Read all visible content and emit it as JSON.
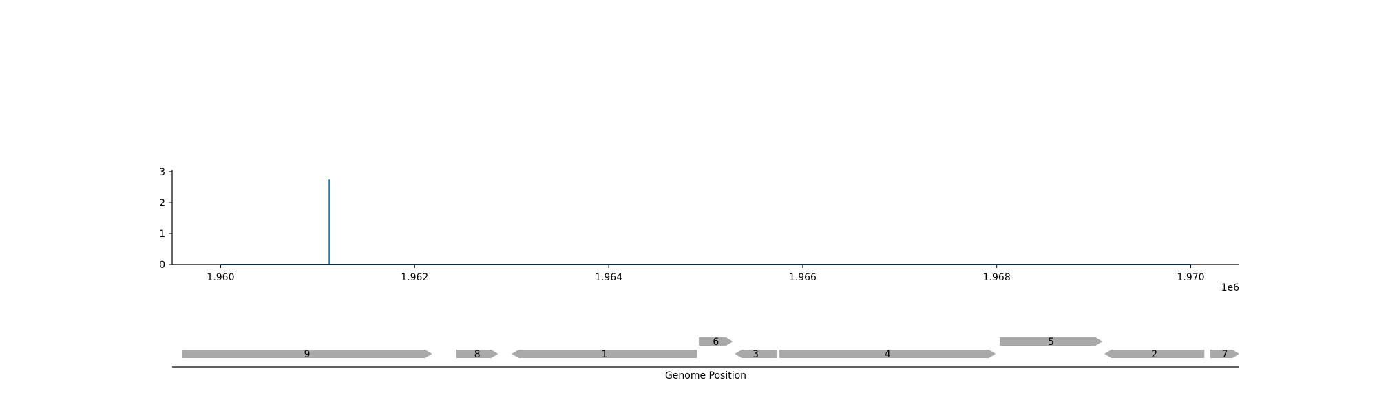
{
  "chart_data": [
    {
      "type": "line",
      "xlim": [
        1959500,
        1970500
      ],
      "ylim": [
        0,
        3
      ],
      "x_tick_values": [
        1960000,
        1962000,
        1964000,
        1966000,
        1968000,
        1970000
      ],
      "x_tick_labels": [
        "1.960",
        "1.962",
        "1.964",
        "1.966",
        "1.968",
        "1.970"
      ],
      "x_offset_label": "1e6",
      "y_tick_values": [
        0,
        1,
        2,
        3
      ],
      "y_tick_labels": [
        "0",
        "1",
        "2",
        "3"
      ],
      "grid": false,
      "color": "#1f77b4",
      "series": [
        {
          "x": [
            1960000,
            1961120,
            1961120,
            1961120,
            1970000
          ],
          "y": [
            0,
            0,
            2.75,
            0,
            0
          ]
        }
      ]
    },
    {
      "type": "gene-track",
      "xlim": [
        1959500,
        1970500
      ],
      "xlabel": "Genome Position",
      "color": "#a9a9a9",
      "genes": [
        {
          "label": "9",
          "start": 1959600,
          "end": 1962180,
          "strand": "+",
          "row": 0
        },
        {
          "label": "8",
          "start": 1962430,
          "end": 1962860,
          "strand": "+",
          "row": 0
        },
        {
          "label": "1",
          "start": 1963000,
          "end": 1964910,
          "strand": "-",
          "row": 0
        },
        {
          "label": "6",
          "start": 1964930,
          "end": 1965280,
          "strand": "+",
          "row": 1
        },
        {
          "label": "3",
          "start": 1965300,
          "end": 1965730,
          "strand": "-",
          "row": 0
        },
        {
          "label": "4",
          "start": 1965760,
          "end": 1967990,
          "strand": "+",
          "row": 0
        },
        {
          "label": "5",
          "start": 1968030,
          "end": 1969090,
          "strand": "+",
          "row": 1
        },
        {
          "label": "2",
          "start": 1969110,
          "end": 1970140,
          "strand": "-",
          "row": 0
        },
        {
          "label": "7",
          "start": 1970200,
          "end": 1970500,
          "strand": "+",
          "row": 0
        }
      ]
    }
  ]
}
